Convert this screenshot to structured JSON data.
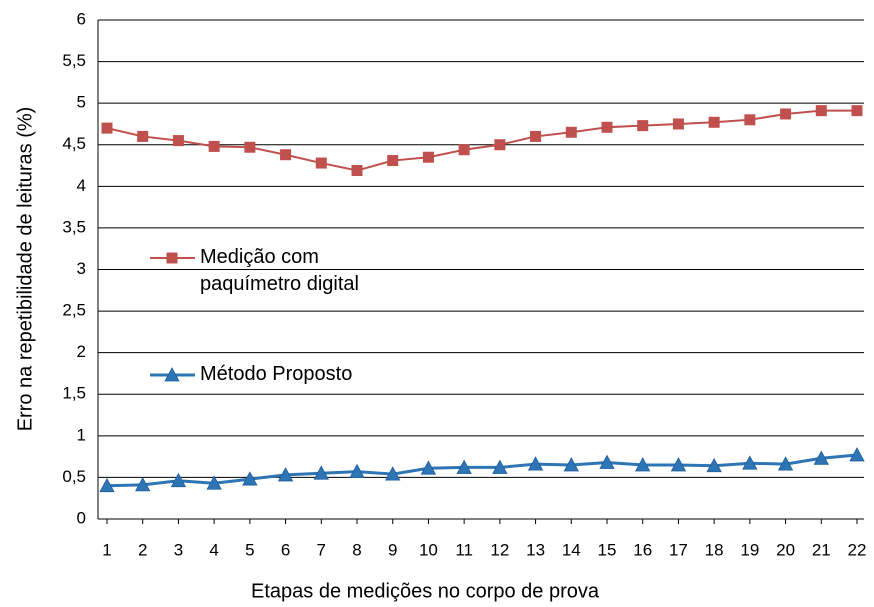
{
  "chart_data": {
    "type": "line",
    "xlabel": "Etapas de medições no corpo de prova",
    "ylabel": "Erro na repetibilidade de leituras (%)",
    "categories": [
      "1",
      "2",
      "3",
      "4",
      "5",
      "6",
      "7",
      "8",
      "9",
      "10",
      "11",
      "12",
      "13",
      "14",
      "15",
      "16",
      "17",
      "18",
      "19",
      "20",
      "21",
      "22"
    ],
    "series": [
      {
        "name": "Medição com paquímetro digital",
        "color": "#c0504d",
        "marker": "square",
        "values": [
          4.7,
          4.6,
          4.55,
          4.48,
          4.47,
          4.38,
          4.28,
          4.19,
          4.31,
          4.35,
          4.44,
          4.5,
          4.6,
          4.65,
          4.71,
          4.73,
          4.75,
          4.77,
          4.8,
          4.87,
          4.91,
          4.91
        ]
      },
      {
        "name": "Método Proposto",
        "color": "#2e75b6",
        "marker": "triangle",
        "values": [
          0.4,
          0.41,
          0.46,
          0.43,
          0.48,
          0.53,
          0.55,
          0.57,
          0.54,
          0.61,
          0.62,
          0.62,
          0.66,
          0.65,
          0.68,
          0.65,
          0.65,
          0.64,
          0.67,
          0.66,
          0.73,
          0.77
        ]
      }
    ],
    "ylim": [
      0,
      6
    ],
    "yticks": [
      0,
      {
        "value": 0.5,
        "label": "0,5"
      },
      1,
      {
        "value": 1.5,
        "label": "1,5"
      },
      2,
      {
        "value": 2.5,
        "label": "2,5"
      },
      3,
      {
        "value": 3.5,
        "label": "3,5"
      },
      4,
      {
        "value": 4.5,
        "label": "4,5"
      },
      5,
      {
        "value": 5.5,
        "label": "5,5"
      },
      6
    ],
    "grid": true,
    "legend": "left"
  }
}
